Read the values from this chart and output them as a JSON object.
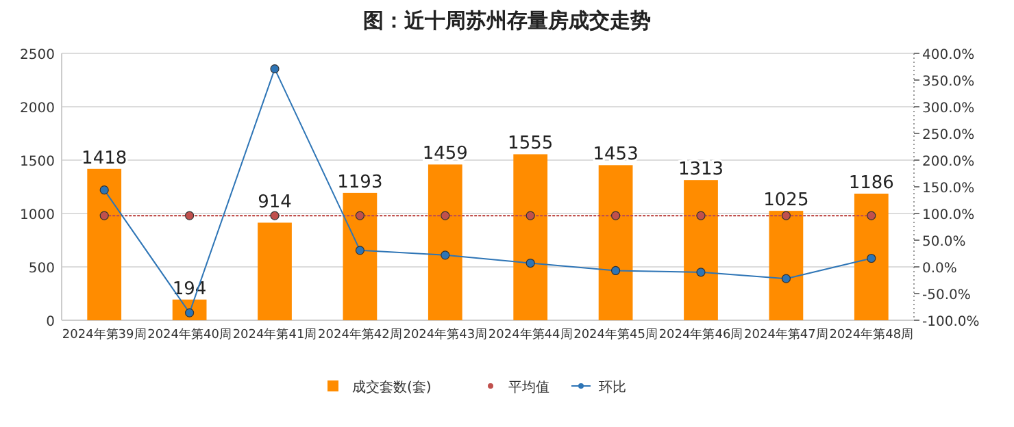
{
  "chart_data": {
    "type": "bar",
    "title": "图：近十周苏州存量房成交走势",
    "categories": [
      "2024年第39周",
      "2024年第40周",
      "2024年第41周",
      "2024年第42周",
      "2024年第43周",
      "2024年第44周",
      "2024年第45周",
      "2024年第46周",
      "2024年第47周",
      "2024年第48周"
    ],
    "series": [
      {
        "name": "成交套数(套)",
        "color": "#ff8c00",
        "values": [
          1418,
          194,
          914,
          1193,
          1459,
          1555,
          1453,
          1313,
          1025,
          1186
        ],
        "value_labels": [
          "1418",
          "194",
          "914",
          "1193",
          "1459",
          "1555",
          "1453",
          "1313",
          "1025",
          "1186"
        ]
      },
      {
        "name": "平均值",
        "type": "line",
        "line_style": "dotted",
        "color": "#c0504d",
        "values": [
          980,
          980,
          980,
          980,
          980,
          980,
          980,
          980,
          980,
          980
        ]
      },
      {
        "name": "环比",
        "type": "line",
        "axis": "y2",
        "color": "#2e75b6",
        "values": [
          144,
          -86,
          371,
          31,
          22,
          7,
          -7,
          -10,
          -22,
          16
        ]
      }
    ],
    "marker": "circle",
    "ylim": [
      0,
      2500
    ],
    "yticks": [
      0,
      500,
      1000,
      1500,
      2000,
      2500
    ],
    "y2lim": [
      -100,
      400
    ],
    "y2ticks": [
      {
        "value": -100,
        "label": "-100.0%"
      },
      {
        "value": -50,
        "label": "-50.0%"
      },
      {
        "value": 0,
        "label": "0.0%"
      },
      {
        "value": 50,
        "label": "50.0%"
      },
      {
        "value": 100,
        "label": "100.0%"
      },
      {
        "value": 150,
        "label": "150.0%"
      },
      {
        "value": 200,
        "label": "200.0%"
      },
      {
        "value": 250,
        "label": "250.0%"
      },
      {
        "value": 300,
        "label": "300.0%"
      },
      {
        "value": 350,
        "label": "350.0%"
      },
      {
        "value": 400,
        "label": "400.0%"
      }
    ],
    "grid": "y",
    "legend": "bottom"
  }
}
